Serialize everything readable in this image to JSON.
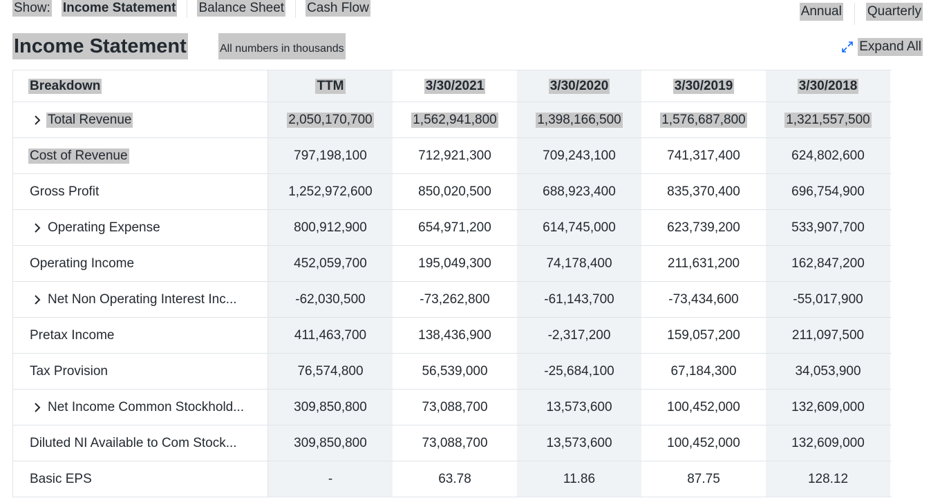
{
  "nav": {
    "show_label": "Show:",
    "tabs": [
      {
        "label": "Income Statement",
        "active": true
      },
      {
        "label": "Balance Sheet",
        "active": false
      },
      {
        "label": "Cash Flow",
        "active": false
      }
    ]
  },
  "period": {
    "annual": "Annual",
    "quarterly": "Quarterly"
  },
  "header": {
    "title": "Income Statement",
    "note": "All numbers in thousands",
    "expand_label": "Expand All"
  },
  "table": {
    "breakdown_label": "Breakdown",
    "columns": [
      "TTM",
      "3/30/2021",
      "3/30/2020",
      "3/30/2019",
      "3/30/2018"
    ],
    "rows": [
      {
        "name": "Total Revenue",
        "expandable": true,
        "values": [
          "2,050,170,700",
          "1,562,941,800",
          "1,398,166,500",
          "1,576,687,800",
          "1,321,557,500"
        ]
      },
      {
        "name": "Cost of Revenue",
        "expandable": false,
        "values": [
          "797,198,100",
          "712,921,300",
          "709,243,100",
          "741,317,400",
          "624,802,600"
        ]
      },
      {
        "name": "Gross Profit",
        "expandable": false,
        "values": [
          "1,252,972,600",
          "850,020,500",
          "688,923,400",
          "835,370,400",
          "696,754,900"
        ]
      },
      {
        "name": "Operating Expense",
        "expandable": true,
        "values": [
          "800,912,900",
          "654,971,200",
          "614,745,000",
          "623,739,200",
          "533,907,700"
        ]
      },
      {
        "name": "Operating Income",
        "expandable": false,
        "values": [
          "452,059,700",
          "195,049,300",
          "74,178,400",
          "211,631,200",
          "162,847,200"
        ]
      },
      {
        "name": "Net Non Operating Interest Inc...",
        "expandable": true,
        "values": [
          "-62,030,500",
          "-73,262,800",
          "-61,143,700",
          "-73,434,600",
          "-55,017,900"
        ]
      },
      {
        "name": "Pretax Income",
        "expandable": false,
        "values": [
          "411,463,700",
          "138,436,900",
          "-2,317,200",
          "159,057,200",
          "211,097,500"
        ]
      },
      {
        "name": "Tax Provision",
        "expandable": false,
        "values": [
          "76,574,800",
          "56,539,000",
          "-25,684,100",
          "67,184,300",
          "34,053,900"
        ]
      },
      {
        "name": "Net Income Common Stockhold...",
        "expandable": true,
        "values": [
          "309,850,800",
          "73,088,700",
          "13,573,600",
          "100,452,000",
          "132,609,000"
        ]
      },
      {
        "name": "Diluted NI Available to Com Stock...",
        "expandable": false,
        "values": [
          "309,850,800",
          "73,088,700",
          "13,573,600",
          "100,452,000",
          "132,609,000"
        ]
      },
      {
        "name": "Basic EPS",
        "expandable": false,
        "values": [
          "-",
          "63.78",
          "11.86",
          "87.75",
          "128.12"
        ]
      }
    ]
  },
  "colors": {
    "text": "#232a31",
    "border": "#e0e4e9",
    "shaded_column": "#f0f3f5",
    "highlight": "#c8c8c8"
  }
}
